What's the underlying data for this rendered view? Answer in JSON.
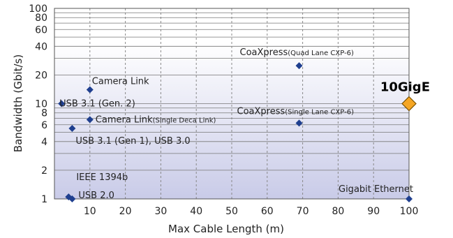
{
  "chart_data": {
    "type": "scatter",
    "xlabel": "Max Cable Length (m)",
    "ylabel": "Bandwidth (Gbit/s)",
    "xlim": [
      0,
      100
    ],
    "ylim": [
      1,
      100
    ],
    "yscale": "log",
    "grid": true,
    "x_ticks": [
      10,
      20,
      30,
      40,
      50,
      60,
      70,
      80,
      90,
      100
    ],
    "y_ticks": [
      1,
      2,
      4,
      6,
      8,
      10,
      20,
      40,
      60,
      80,
      100
    ],
    "points": [
      {
        "label": "Camera Link",
        "sublabel": "",
        "x": 10,
        "y": 14
      },
      {
        "label": "USB 3.1 (Gen. 2)",
        "sublabel": "",
        "x": 2,
        "y": 10
      },
      {
        "label": "Camera Link",
        "sublabel": "(Single Deca Link)",
        "x": 10,
        "y": 6.8
      },
      {
        "label": "USB 3.1 (Gen 1), USB 3.0",
        "sublabel": "",
        "x": 5,
        "y": 5.5
      },
      {
        "label": "CoaXpress",
        "sublabel": "(Quad Lane CXP-6)",
        "x": 69,
        "y": 25
      },
      {
        "label": "CoaXpress",
        "sublabel": "(Single Lane CXP-6)",
        "x": 69,
        "y": 6.25
      },
      {
        "label": "IEEE 1394b",
        "sublabel": "",
        "x": 4,
        "y": 1.05
      },
      {
        "label": "USB 2.0",
        "sublabel": "",
        "x": 5,
        "y": 1
      },
      {
        "label": "Gigabit Ethernet",
        "sublabel": "",
        "x": 100,
        "y": 1
      }
    ],
    "highlight": {
      "label": "10GigE",
      "x": 100,
      "y": 10,
      "color": "#f5a623"
    },
    "colors": {
      "point": "#1f3f8f",
      "background_top": "#ffffff",
      "background_bottom": "#c9cbe8"
    }
  }
}
